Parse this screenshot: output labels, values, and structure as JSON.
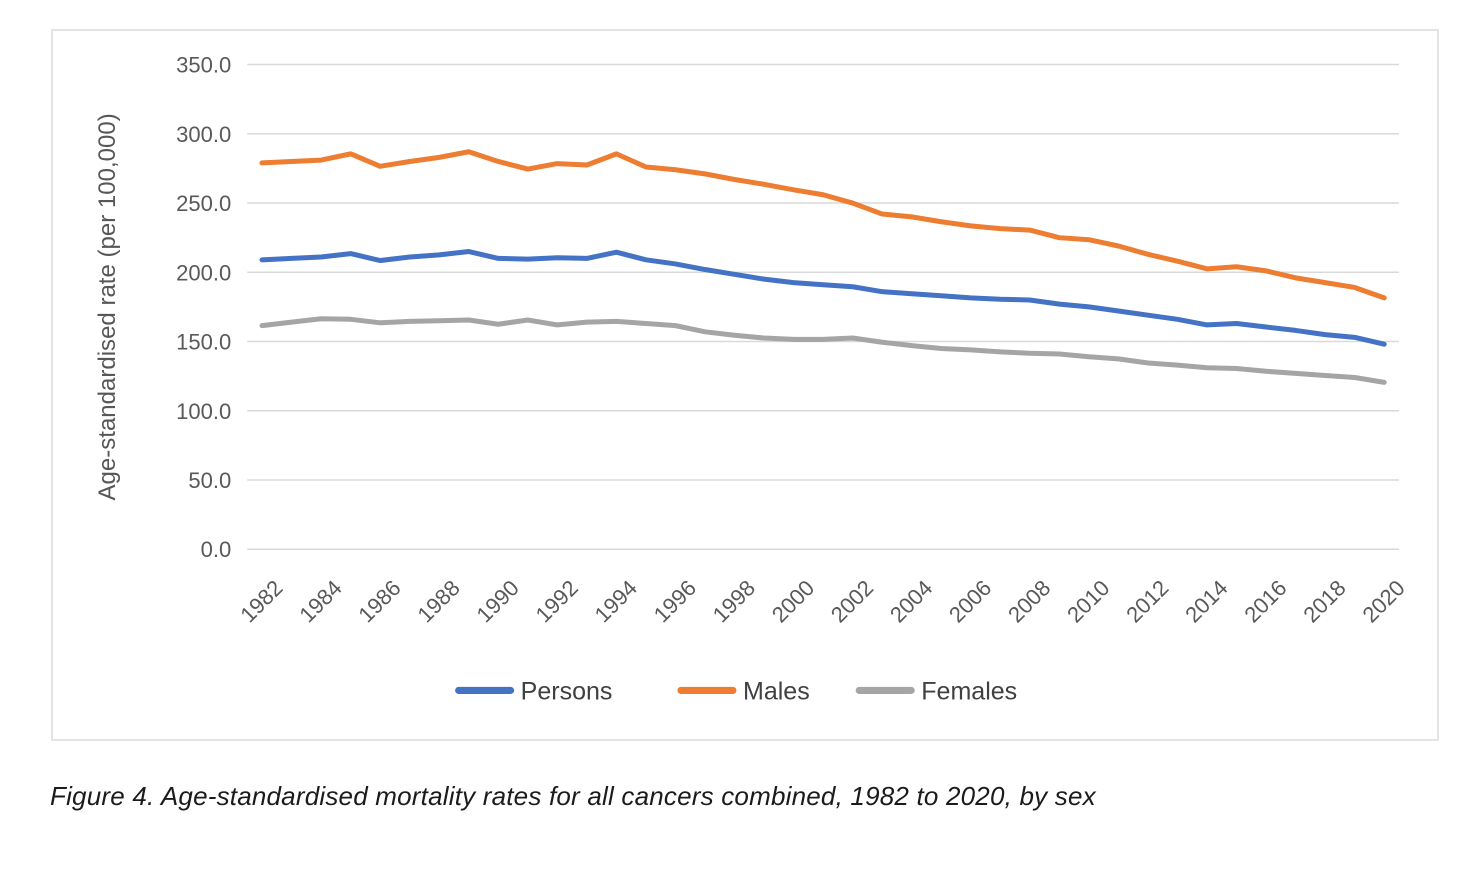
{
  "figure": {
    "caption": "Figure 4. Age-standardised mortality rates for all cancers combined, 1982 to 2020, by sex"
  },
  "chart_data": {
    "type": "line",
    "title": "",
    "xlabel": "",
    "ylabel": "Age-standardised rate (per 100,000)",
    "ylim": [
      0,
      350
    ],
    "y_tick_step": 50,
    "y_tick_labels": [
      "0.0",
      "50.0",
      "100.0",
      "150.0",
      "200.0",
      "250.0",
      "300.0",
      "350.0"
    ],
    "x": [
      1982,
      1983,
      1984,
      1985,
      1986,
      1987,
      1988,
      1989,
      1990,
      1991,
      1992,
      1993,
      1994,
      1995,
      1996,
      1997,
      1998,
      1999,
      2000,
      2001,
      2002,
      2003,
      2004,
      2005,
      2006,
      2007,
      2008,
      2009,
      2010,
      2011,
      2012,
      2013,
      2014,
      2015,
      2016,
      2017,
      2018,
      2019,
      2020
    ],
    "x_tick_step": 2,
    "grid": "horizontal",
    "legend_position": "bottom",
    "series": [
      {
        "name": "Persons",
        "color": "#4472C4",
        "values": [
          209,
          210,
          211,
          213.5,
          208.5,
          211,
          212.5,
          215,
          210,
          209.5,
          210.5,
          210,
          214.5,
          209,
          206,
          202,
          198.5,
          195,
          192.5,
          191,
          189.5,
          186,
          184.5,
          183,
          181.5,
          180.5,
          180,
          177,
          175,
          172,
          169,
          166,
          162,
          163,
          160.5,
          158,
          155,
          153,
          148
        ]
      },
      {
        "name": "Males",
        "color": "#ED7D31",
        "values": [
          279,
          280,
          281,
          285.5,
          276.5,
          280,
          283,
          287,
          280,
          274.5,
          278.5,
          277.5,
          285.5,
          276,
          274,
          271,
          267,
          263.5,
          259.5,
          256,
          250,
          242,
          240,
          236.5,
          233.5,
          231.5,
          230.5,
          225,
          223.5,
          219,
          213,
          208,
          202.5,
          204,
          201,
          196,
          192.5,
          189,
          181.5
        ]
      },
      {
        "name": "Females",
        "color": "#A5A5A5",
        "values": [
          161.5,
          164,
          166.5,
          166,
          163.5,
          164.5,
          165,
          165.5,
          162.5,
          165.5,
          162,
          164,
          164.5,
          163,
          161.5,
          157,
          154.5,
          152.5,
          151.5,
          151.5,
          152.5,
          149.5,
          147,
          145,
          144,
          142.5,
          141.5,
          141,
          139,
          137.5,
          134.5,
          133,
          131,
          130.5,
          128.5,
          127,
          125.5,
          124,
          120.5
        ]
      }
    ],
    "style_colors": {
      "gridline": "#D9D9D9",
      "tick_label": "#595959",
      "axis_title": "#575757",
      "legend_text": "#404040"
    }
  }
}
